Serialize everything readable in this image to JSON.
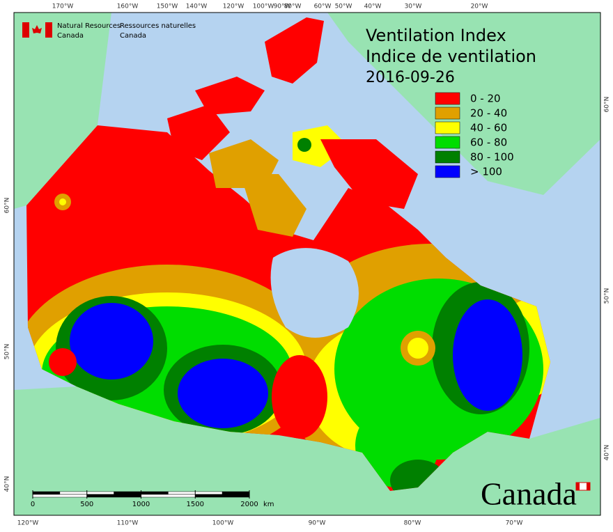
{
  "header": {
    "agency_en": [
      "Natural Resources",
      "Canada"
    ],
    "agency_fr": [
      "Ressources naturelles",
      "Canada"
    ]
  },
  "title": [
    "Ventilation Index",
    "Indice de ventilation",
    "2016-09-26"
  ],
  "legend": [
    {
      "label": "0 - 20",
      "color": "#ff0000"
    },
    {
      "label": "20 - 40",
      "color": "#e0a000"
    },
    {
      "label": "40 - 60",
      "color": "#ffff00"
    },
    {
      "label": "60 - 80",
      "color": "#00dd00"
    },
    {
      "label": "80 - 100",
      "color": "#008000"
    },
    {
      "label": "> 100",
      "color": "#0000ff"
    }
  ],
  "graticule": {
    "top": [
      "170°W",
      "160°W",
      "150°W",
      "140°W",
      "120°W",
      "100°W",
      "90°W",
      "80°W",
      "60°W",
      "50°W",
      "40°W",
      "30°W",
      "20°W"
    ],
    "bottom": [
      "120°W",
      "110°W",
      "100°W",
      "90°W",
      "80°W",
      "70°W"
    ],
    "left": [
      "60°N",
      "50°N",
      "40°N"
    ],
    "right": [
      "60°N",
      "50°N",
      "40°N"
    ]
  },
  "scale_bar": {
    "ticks": [
      0,
      500,
      1000,
      1500,
      2000
    ],
    "unit": "km"
  },
  "wordmark": "Canada"
}
